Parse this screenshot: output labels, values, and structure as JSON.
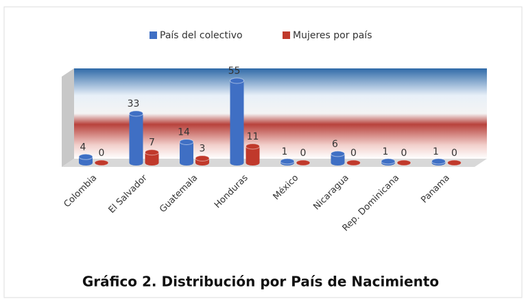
{
  "chart_data": {
    "type": "bar3d",
    "title": "Gráfico 2. Distribución por País de Nacimiento",
    "categories": [
      "Colombia",
      "El Salvador",
      "Guatemala",
      "Honduras",
      "México",
      "Nicaragua",
      "Rep. Dominicana",
      "Panama"
    ],
    "series": [
      {
        "name": "País del colectivo",
        "color": "#3f6fc4",
        "values": [
          4,
          33,
          14,
          55,
          1,
          6,
          1,
          1
        ]
      },
      {
        "name": "Mujeres por país",
        "color": "#c0392b",
        "values": [
          0,
          7,
          3,
          11,
          0,
          0,
          0,
          0
        ]
      }
    ],
    "legend": "top"
  }
}
